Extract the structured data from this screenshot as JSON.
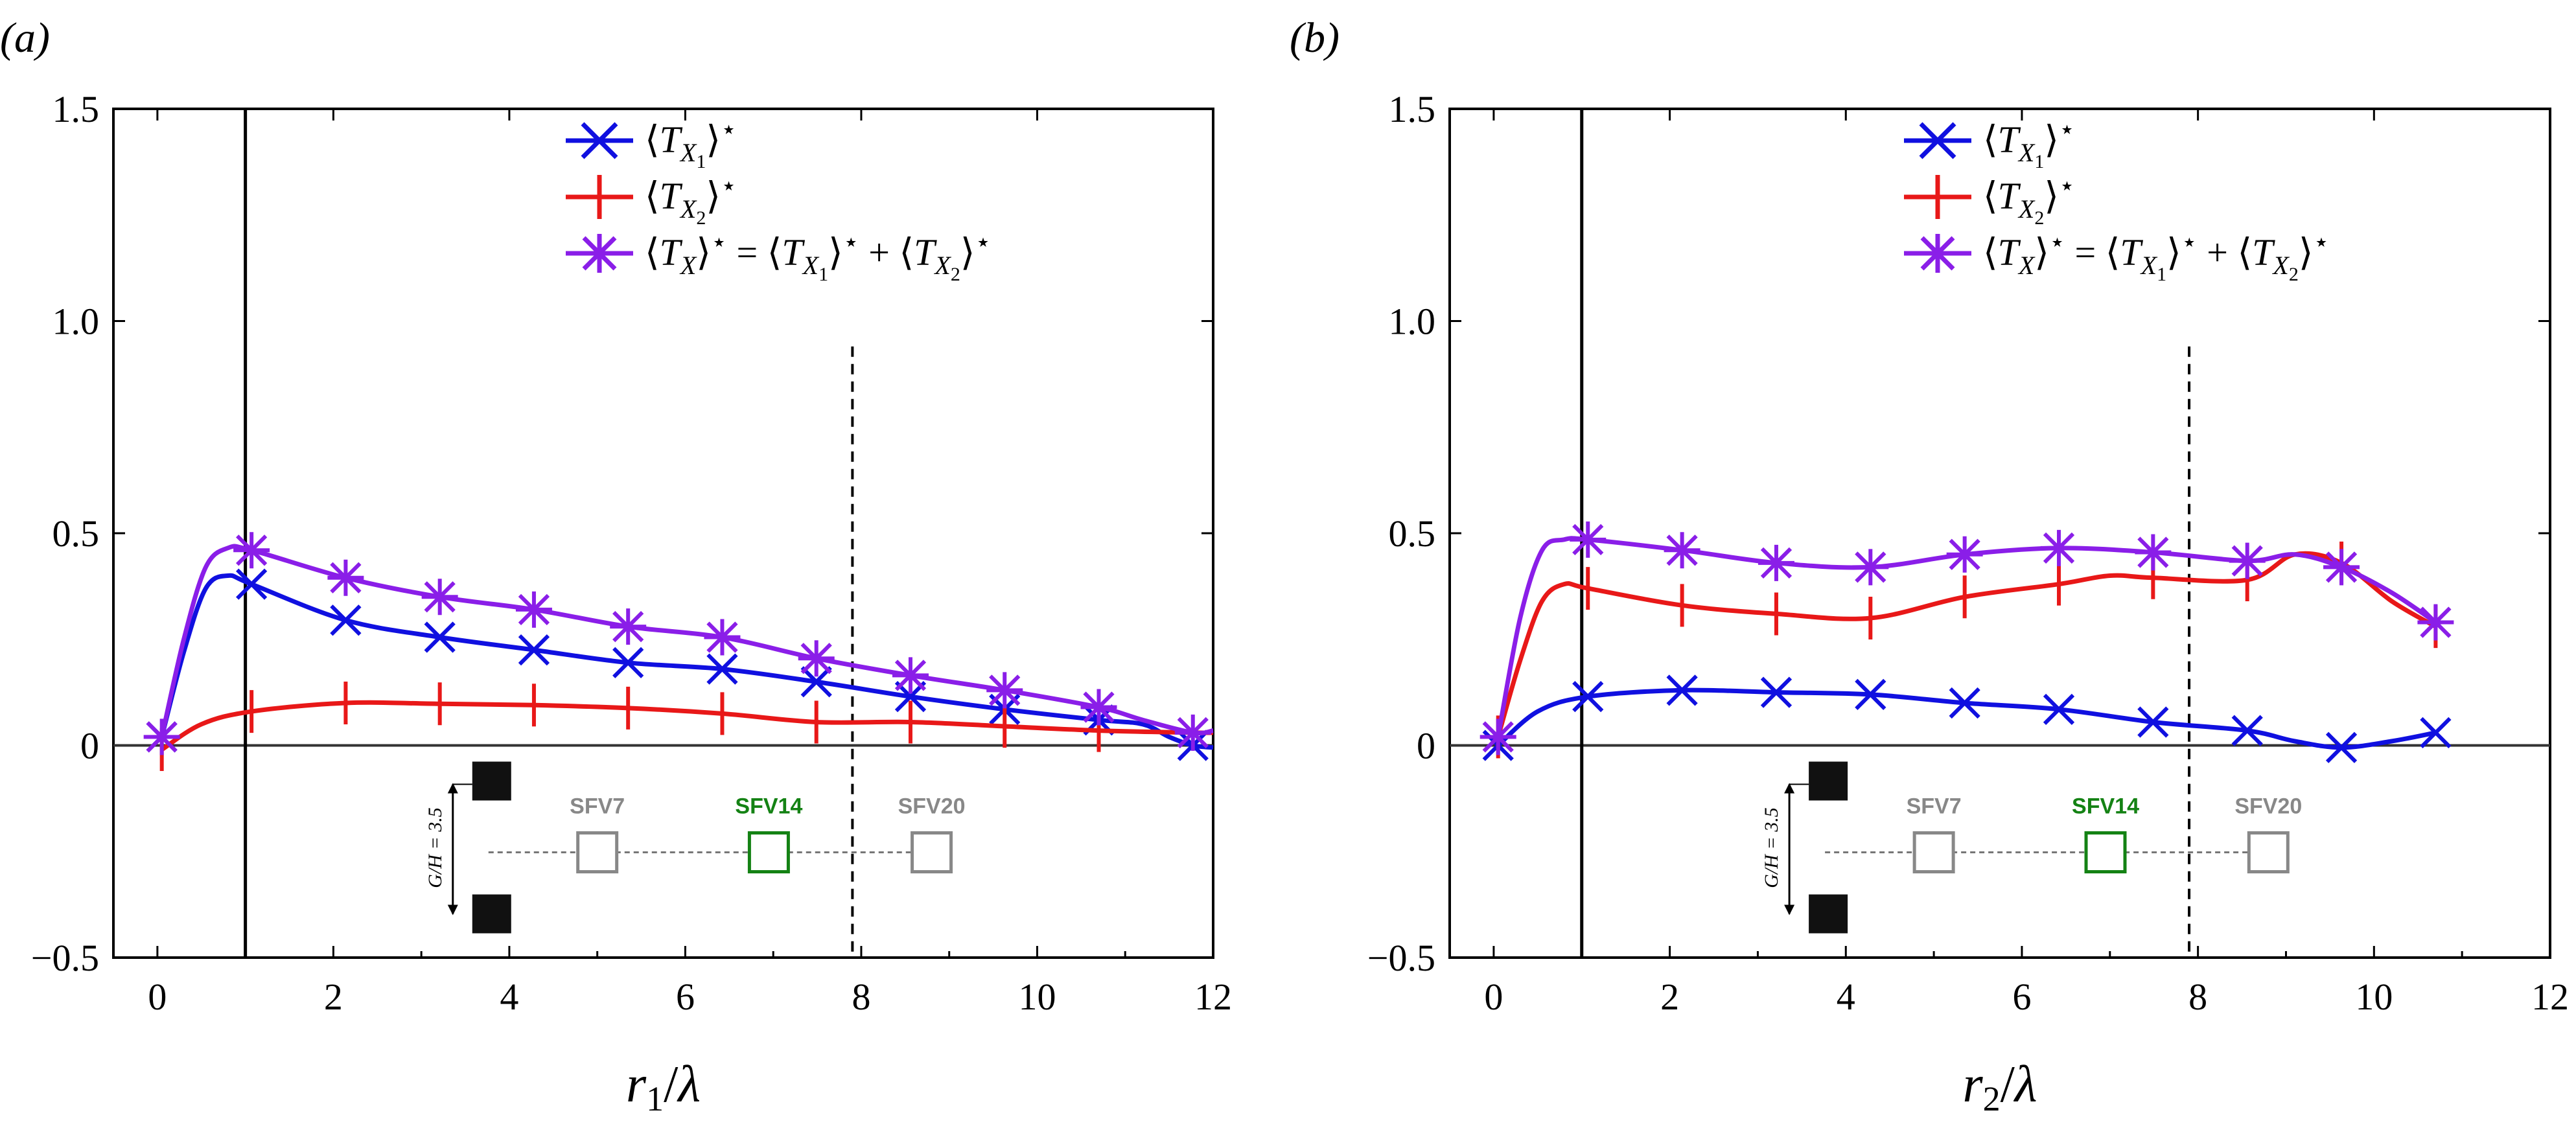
{
  "colors": {
    "tx1": "#1010e0",
    "tx2": "#e81818",
    "tx": "#8a1ee8",
    "inset_gray": "#888888",
    "inset_green": "#148214"
  },
  "chart_data": [
    {
      "type": "line",
      "panel": "(a)",
      "panel_letter": "a",
      "xlabel_var": "r",
      "xlabel_sub": "1",
      "xlabel_den": "λ",
      "xlim": [
        -0.5,
        12
      ],
      "ylim": [
        -0.5,
        1.5
      ],
      "xticks": [
        0,
        2,
        4,
        6,
        8,
        10,
        12
      ],
      "yticks": [
        -0.5,
        0,
        0.5,
        1.0,
        1.5
      ],
      "ytick_labels": [
        "−0.5",
        "0",
        "0.5",
        "1.0",
        "1.5"
      ],
      "vline_solid": 1.0,
      "vline_dashed": 7.9,
      "legend": [
        {
          "key": "tx1",
          "marker": "x",
          "label_main": "⟨T",
          "label_var": "X",
          "label_sub": "1",
          "label_tail": "⟩⋆"
        },
        {
          "key": "tx2",
          "marker": "+",
          "label_main": "⟨T",
          "label_var": "X",
          "label_sub": "2",
          "label_tail": "⟩⋆"
        },
        {
          "key": "tx",
          "marker": "*",
          "label_main": "⟨T",
          "label_var": "X",
          "label_sub": "",
          "label_tail": "⟩⋆ = ⟨T_X1⟩⋆ + ⟨T_X2⟩⋆"
        }
      ],
      "series": [
        {
          "key": "tx1",
          "name": "⟨T_X1⟩⋆",
          "color": "#1010e0",
          "marker": "x",
          "x": [
            0.05,
            0.3,
            0.55,
            0.8,
            1.07,
            2.14,
            3.21,
            4.28,
            5.35,
            6.42,
            7.49,
            8.56,
            9.63,
            10.7,
            11.2,
            11.5,
            11.77,
            12.0
          ],
          "y": [
            0.02,
            0.22,
            0.37,
            0.4,
            0.38,
            0.295,
            0.255,
            0.225,
            0.195,
            0.18,
            0.15,
            0.115,
            0.085,
            0.06,
            0.05,
            0.02,
            0.0,
            -0.005
          ],
          "markers_x": [
            0.05,
            1.07,
            2.14,
            3.21,
            4.28,
            5.35,
            6.42,
            7.49,
            8.56,
            9.63,
            10.7,
            11.77
          ]
        },
        {
          "key": "tx2",
          "name": "⟨T_X2⟩⋆",
          "color": "#e81818",
          "marker": "+",
          "x": [
            0.05,
            0.5,
            1.07,
            2.14,
            3.21,
            4.28,
            5.35,
            6.42,
            7.49,
            8.56,
            9.63,
            10.7,
            11.77,
            12.0
          ],
          "y": [
            -0.01,
            0.05,
            0.08,
            0.1,
            0.098,
            0.095,
            0.088,
            0.075,
            0.055,
            0.055,
            0.045,
            0.035,
            0.03,
            0.03
          ],
          "markers_x": [
            0.05,
            1.07,
            2.14,
            3.21,
            4.28,
            5.35,
            6.42,
            7.49,
            8.56,
            9.63,
            10.7
          ]
        },
        {
          "key": "tx",
          "name": "⟨T_X⟩⋆",
          "color": "#8a1ee8",
          "marker": "*",
          "x": [
            0.05,
            0.3,
            0.55,
            0.8,
            1.07,
            2.14,
            3.21,
            4.28,
            5.35,
            6.42,
            7.49,
            8.56,
            9.63,
            10.7,
            11.2,
            11.77,
            12.0
          ],
          "y": [
            0.02,
            0.25,
            0.42,
            0.465,
            0.46,
            0.395,
            0.35,
            0.32,
            0.28,
            0.255,
            0.205,
            0.165,
            0.13,
            0.09,
            0.06,
            0.03,
            0.035
          ],
          "markers_x": [
            0.05,
            1.07,
            2.14,
            3.21,
            4.28,
            5.35,
            6.42,
            7.49,
            8.56,
            9.63,
            10.7,
            11.77
          ]
        }
      ],
      "inset": {
        "labels": [
          "SFV7",
          "SFV14",
          "SFV20"
        ],
        "gap_label": "G/H = 3.5"
      }
    },
    {
      "type": "line",
      "panel": "(b)",
      "panel_letter": "b",
      "xlabel_var": "r",
      "xlabel_sub": "2",
      "xlabel_den": "λ",
      "xlim": [
        -0.5,
        12
      ],
      "ylim": [
        -0.5,
        1.5
      ],
      "xticks": [
        0,
        2,
        4,
        6,
        8,
        10,
        12
      ],
      "yticks": [
        -0.5,
        0,
        0.5,
        1.0,
        1.5
      ],
      "ytick_labels": [
        "−0.5",
        "0",
        "0.5",
        "1.0",
        "1.5"
      ],
      "vline_solid": 1.0,
      "vline_dashed": 7.9,
      "legend": [
        {
          "key": "tx1",
          "marker": "x",
          "label_main": "⟨T",
          "label_var": "X",
          "label_sub": "1",
          "label_tail": "⟩⋆"
        },
        {
          "key": "tx2",
          "marker": "+",
          "label_main": "⟨T",
          "label_var": "X",
          "label_sub": "2",
          "label_tail": "⟩⋆"
        },
        {
          "key": "tx",
          "marker": "*",
          "label_main": "⟨T",
          "label_var": "X",
          "label_sub": "",
          "label_tail": "⟩⋆ = ⟨T_X1⟩⋆ + ⟨T_X2⟩⋆"
        }
      ],
      "series": [
        {
          "key": "tx1",
          "name": "⟨T_X1⟩⋆",
          "color": "#1010e0",
          "marker": "x",
          "x": [
            0.05,
            0.5,
            1.07,
            2.14,
            3.21,
            4.28,
            5.35,
            6.42,
            7.49,
            8.56,
            9.1,
            9.63,
            10.2,
            10.7
          ],
          "y": [
            0.0,
            0.08,
            0.115,
            0.13,
            0.125,
            0.12,
            0.1,
            0.085,
            0.055,
            0.035,
            0.01,
            -0.005,
            0.01,
            0.03
          ],
          "markers_x": [
            0.05,
            1.07,
            2.14,
            3.21,
            4.28,
            5.35,
            6.42,
            7.49,
            8.56,
            9.63,
            10.7
          ]
        },
        {
          "key": "tx2",
          "name": "⟨T_X2⟩⋆",
          "color": "#e81818",
          "marker": "+",
          "x": [
            0.05,
            0.3,
            0.55,
            0.8,
            1.07,
            2.14,
            3.21,
            4.28,
            5.35,
            6.42,
            7.0,
            7.49,
            8.56,
            9.1,
            9.63,
            10.2,
            10.7
          ],
          "y": [
            0.02,
            0.2,
            0.34,
            0.38,
            0.37,
            0.33,
            0.31,
            0.3,
            0.35,
            0.38,
            0.4,
            0.395,
            0.39,
            0.45,
            0.43,
            0.34,
            0.28
          ],
          "markers_x": [
            0.05,
            1.07,
            2.14,
            3.21,
            4.28,
            5.35,
            6.42,
            7.49,
            8.56,
            9.63,
            10.7
          ]
        },
        {
          "key": "tx",
          "name": "⟨T_X⟩⋆",
          "color": "#8a1ee8",
          "marker": "*",
          "x": [
            0.05,
            0.3,
            0.55,
            0.8,
            1.07,
            2.14,
            3.21,
            4.28,
            5.35,
            6.42,
            7.49,
            8.56,
            9.1,
            9.63,
            10.2,
            10.7
          ],
          "y": [
            0.02,
            0.3,
            0.46,
            0.485,
            0.485,
            0.46,
            0.43,
            0.42,
            0.45,
            0.465,
            0.455,
            0.435,
            0.45,
            0.42,
            0.36,
            0.29
          ],
          "markers_x": [
            0.05,
            1.07,
            2.14,
            3.21,
            4.28,
            5.35,
            6.42,
            7.49,
            8.56,
            9.63,
            10.7
          ]
        }
      ],
      "inset": {
        "labels": [
          "SFV7",
          "SFV14",
          "SFV20"
        ],
        "gap_label": "G/H = 3.5"
      }
    }
  ]
}
